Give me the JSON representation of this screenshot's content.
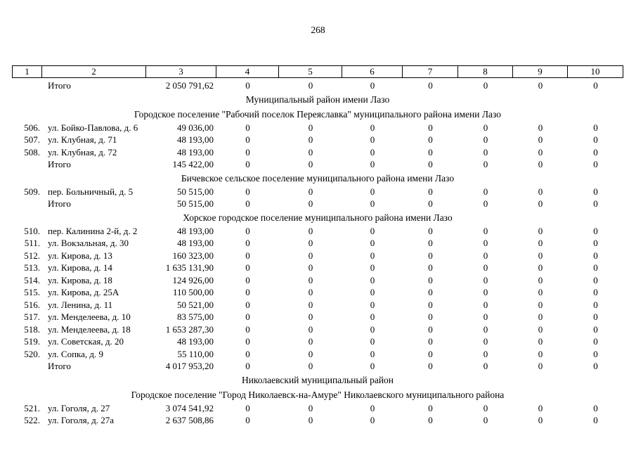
{
  "page": {
    "number": "268"
  },
  "table": {
    "header_cols": [
      "1",
      "2",
      "3",
      "4",
      "5",
      "6",
      "7",
      "8",
      "9",
      "10"
    ],
    "blocks": [
      {
        "type": "total",
        "cells": [
          "",
          "Итого",
          "2 050 791,62",
          "0",
          "0",
          "0",
          "0",
          "0",
          "0",
          "0"
        ]
      },
      {
        "type": "district",
        "text": "Муниципальный район имени Лазо"
      },
      {
        "type": "settlement",
        "text": "Городское поселение \"Рабочий поселок Переяславка\" муниципального района имени Лазо"
      },
      {
        "type": "row",
        "cells": [
          "506.",
          "ул. Бойко-Павлова, д. 6",
          "49 036,00",
          "0",
          "0",
          "0",
          "0",
          "0",
          "0",
          "0"
        ]
      },
      {
        "type": "row",
        "cells": [
          "507.",
          "ул. Клубная, д. 71",
          "48 193,00",
          "0",
          "0",
          "0",
          "0",
          "0",
          "0",
          "0"
        ]
      },
      {
        "type": "row",
        "cells": [
          "508.",
          "ул. Клубная, д. 72",
          "48 193,00",
          "0",
          "0",
          "0",
          "0",
          "0",
          "0",
          "0"
        ]
      },
      {
        "type": "total",
        "cells": [
          "",
          "Итого",
          "145 422,00",
          "0",
          "0",
          "0",
          "0",
          "0",
          "0",
          "0"
        ]
      },
      {
        "type": "settlement",
        "text": "Бичевское сельское поселение муниципального района имени Лазо"
      },
      {
        "type": "row",
        "cells": [
          "509.",
          "пер. Больничный, д. 5",
          "50 515,00",
          "0",
          "0",
          "0",
          "0",
          "0",
          "0",
          "0"
        ]
      },
      {
        "type": "total",
        "cells": [
          "",
          "Итого",
          "50 515,00",
          "0",
          "0",
          "0",
          "0",
          "0",
          "0",
          "0"
        ]
      },
      {
        "type": "settlement",
        "text": "Хорское городское поселение муниципального района имени Лазо"
      },
      {
        "type": "row",
        "cells": [
          "510.",
          "пер. Калинина 2-й, д. 2",
          "48 193,00",
          "0",
          "0",
          "0",
          "0",
          "0",
          "0",
          "0"
        ]
      },
      {
        "type": "row",
        "cells": [
          "511.",
          "ул. Вокзальная, д. 30",
          "48 193,00",
          "0",
          "0",
          "0",
          "0",
          "0",
          "0",
          "0"
        ]
      },
      {
        "type": "row",
        "cells": [
          "512.",
          "ул. Кирова, д. 13",
          "160 323,00",
          "0",
          "0",
          "0",
          "0",
          "0",
          "0",
          "0"
        ]
      },
      {
        "type": "row",
        "cells": [
          "513.",
          "ул. Кирова, д. 14",
          "1 635 131,90",
          "0",
          "0",
          "0",
          "0",
          "0",
          "0",
          "0"
        ]
      },
      {
        "type": "row",
        "cells": [
          "514.",
          "ул. Кирова, д. 18",
          "124 926,00",
          "0",
          "0",
          "0",
          "0",
          "0",
          "0",
          "0"
        ]
      },
      {
        "type": "row",
        "cells": [
          "515.",
          "ул. Кирова, д. 25А",
          "110 500,00",
          "0",
          "0",
          "0",
          "0",
          "0",
          "0",
          "0"
        ]
      },
      {
        "type": "row",
        "cells": [
          "516.",
          "ул. Ленина, д. 11",
          "50 521,00",
          "0",
          "0",
          "0",
          "0",
          "0",
          "0",
          "0"
        ]
      },
      {
        "type": "row",
        "cells": [
          "517.",
          "ул. Менделеева, д. 10",
          "83 575,00",
          "0",
          "0",
          "0",
          "0",
          "0",
          "0",
          "0"
        ]
      },
      {
        "type": "row",
        "cells": [
          "518.",
          "ул. Менделеева, д. 18",
          "1 653 287,30",
          "0",
          "0",
          "0",
          "0",
          "0",
          "0",
          "0"
        ]
      },
      {
        "type": "row",
        "cells": [
          "519.",
          "ул. Советская, д. 20",
          "48 193,00",
          "0",
          "0",
          "0",
          "0",
          "0",
          "0",
          "0"
        ]
      },
      {
        "type": "row",
        "cells": [
          "520.",
          "ул. Сопка, д. 9",
          "55 110,00",
          "0",
          "0",
          "0",
          "0",
          "0",
          "0",
          "0"
        ]
      },
      {
        "type": "total",
        "cells": [
          "",
          "Итого",
          "4 017 953,20",
          "0",
          "0",
          "0",
          "0",
          "0",
          "0",
          "0"
        ]
      },
      {
        "type": "district",
        "text": "Николаевский муниципальный район"
      },
      {
        "type": "settlement",
        "text": "Городское поселение \"Город Николаевск-на-Амуре\" Николаевского муниципального района"
      },
      {
        "type": "row",
        "cells": [
          "521.",
          "ул. Гоголя, д. 27",
          "3 074 541,92",
          "0",
          "0",
          "0",
          "0",
          "0",
          "0",
          "0"
        ]
      },
      {
        "type": "row",
        "cells": [
          "522.",
          "ул. Гоголя, д. 27а",
          "2 637 508,86",
          "0",
          "0",
          "0",
          "0",
          "0",
          "0",
          "0"
        ]
      }
    ]
  }
}
